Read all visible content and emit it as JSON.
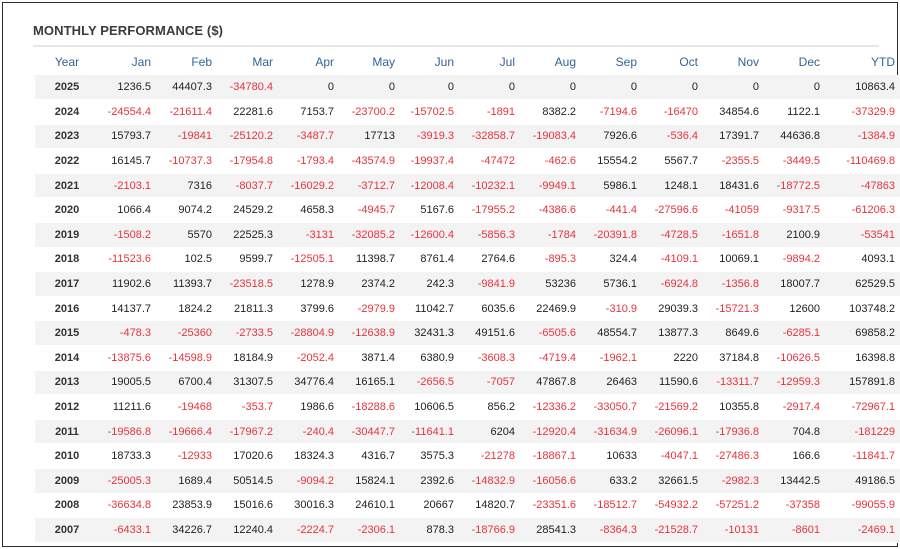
{
  "title": "MONTHLY PERFORMANCE ($)",
  "columns": [
    "Year",
    "Jan",
    "Feb",
    "Mar",
    "Apr",
    "May",
    "Jun",
    "Jul",
    "Aug",
    "Sep",
    "Oct",
    "Nov",
    "Dec",
    "YTD"
  ],
  "colors": {
    "negative": "#e8333c",
    "header": "#34639a",
    "stripe": "#f3f3f3"
  },
  "rows": [
    [
      "2025",
      "1236.5",
      "44407.3",
      "-34780.4",
      "0",
      "0",
      "0",
      "0",
      "0",
      "0",
      "0",
      "0",
      "0",
      "10863.4"
    ],
    [
      "2024",
      "-24554.4",
      "-21611.4",
      "22281.6",
      "7153.7",
      "-23700.2",
      "-15702.5",
      "-1891",
      "8382.2",
      "-7194.6",
      "-16470",
      "34854.6",
      "1122.1",
      "-37329.9"
    ],
    [
      "2023",
      "15793.7",
      "-19841",
      "-25120.2",
      "-3487.7",
      "17713",
      "-3919.3",
      "-32858.7",
      "-19083.4",
      "7926.6",
      "-536.4",
      "17391.7",
      "44636.8",
      "-1384.9"
    ],
    [
      "2022",
      "16145.7",
      "-10737.3",
      "-17954.8",
      "-1793.4",
      "-43574.9",
      "-19937.4",
      "-47472",
      "-462.6",
      "15554.2",
      "5567.7",
      "-2355.5",
      "-3449.5",
      "-110469.8"
    ],
    [
      "2021",
      "-2103.1",
      "7316",
      "-8037.7",
      "-16029.2",
      "-3712.7",
      "-12008.4",
      "-10232.1",
      "-9949.1",
      "5986.1",
      "1248.1",
      "18431.6",
      "-18772.5",
      "-47863"
    ],
    [
      "2020",
      "1066.4",
      "9074.2",
      "24529.2",
      "4658.3",
      "-4945.7",
      "5167.6",
      "-17955.2",
      "-4386.6",
      "-441.4",
      "-27596.6",
      "-41059",
      "-9317.5",
      "-61206.3"
    ],
    [
      "2019",
      "-1508.2",
      "5570",
      "22525.3",
      "-3131",
      "-32085.2",
      "-12600.4",
      "-5856.3",
      "-1784",
      "-20391.8",
      "-4728.5",
      "-1651.8",
      "2100.9",
      "-53541"
    ],
    [
      "2018",
      "-11523.6",
      "102.5",
      "9599.7",
      "-12505.1",
      "11398.7",
      "8761.4",
      "2764.6",
      "-895.3",
      "324.4",
      "-4109.1",
      "10069.1",
      "-9894.2",
      "4093.1"
    ],
    [
      "2017",
      "11902.6",
      "11393.7",
      "-23518.5",
      "1278.9",
      "2374.2",
      "242.3",
      "-9841.9",
      "53236",
      "5736.1",
      "-6924.8",
      "-1356.8",
      "18007.7",
      "62529.5"
    ],
    [
      "2016",
      "14137.7",
      "1824.2",
      "21811.3",
      "3799.6",
      "-2979.9",
      "11042.7",
      "6035.6",
      "22469.9",
      "-310.9",
      "29039.3",
      "-15721.3",
      "12600",
      "103748.2"
    ],
    [
      "2015",
      "-478.3",
      "-25360",
      "-2733.5",
      "-28804.9",
      "-12638.9",
      "32431.3",
      "49151.6",
      "-6505.6",
      "48554.7",
      "13877.3",
      "8649.6",
      "-6285.1",
      "69858.2"
    ],
    [
      "2014",
      "-13875.6",
      "-14598.9",
      "18184.9",
      "-2052.4",
      "3871.4",
      "6380.9",
      "-3608.3",
      "-4719.4",
      "-1962.1",
      "2220",
      "37184.8",
      "-10626.5",
      "16398.8"
    ],
    [
      "2013",
      "19005.5",
      "6700.4",
      "31307.5",
      "34776.4",
      "16165.1",
      "-2656.5",
      "-7057",
      "47867.8",
      "26463",
      "11590.6",
      "-13311.7",
      "-12959.3",
      "157891.8"
    ],
    [
      "2012",
      "11211.6",
      "-19468",
      "-353.7",
      "1986.6",
      "-18288.6",
      "10606.5",
      "856.2",
      "-12336.2",
      "-33050.7",
      "-21569.2",
      "10355.8",
      "-2917.4",
      "-72967.1"
    ],
    [
      "2011",
      "-19586.8",
      "-19666.4",
      "-17967.2",
      "-240.4",
      "-30447.7",
      "-11641.1",
      "6204",
      "-12920.4",
      "-31634.9",
      "-26096.1",
      "-17936.8",
      "704.8",
      "-181229"
    ],
    [
      "2010",
      "18733.3",
      "-12933",
      "17020.6",
      "18324.3",
      "4316.7",
      "3575.3",
      "-21278",
      "-18867.1",
      "10633",
      "-4047.1",
      "-27486.3",
      "166.6",
      "-11841.7"
    ],
    [
      "2009",
      "-25005.3",
      "1689.4",
      "50514.5",
      "-9094.2",
      "15824.1",
      "2392.6",
      "-14832.9",
      "-16056.6",
      "633.2",
      "32661.5",
      "-2982.3",
      "13442.5",
      "49186.5"
    ],
    [
      "2008",
      "-36634.8",
      "23853.9",
      "15016.6",
      "30016.3",
      "24610.1",
      "20667",
      "14820.7",
      "-23351.6",
      "-18512.7",
      "-54932.2",
      "-57251.2",
      "-37358",
      "-99055.9"
    ],
    [
      "2007",
      "-6433.1",
      "34226.7",
      "12240.4",
      "-2224.7",
      "-2306.1",
      "878.3",
      "-18766.9",
      "28541.3",
      "-8364.3",
      "-21528.7",
      "-10131",
      "-8601",
      "-2469.1"
    ]
  ]
}
